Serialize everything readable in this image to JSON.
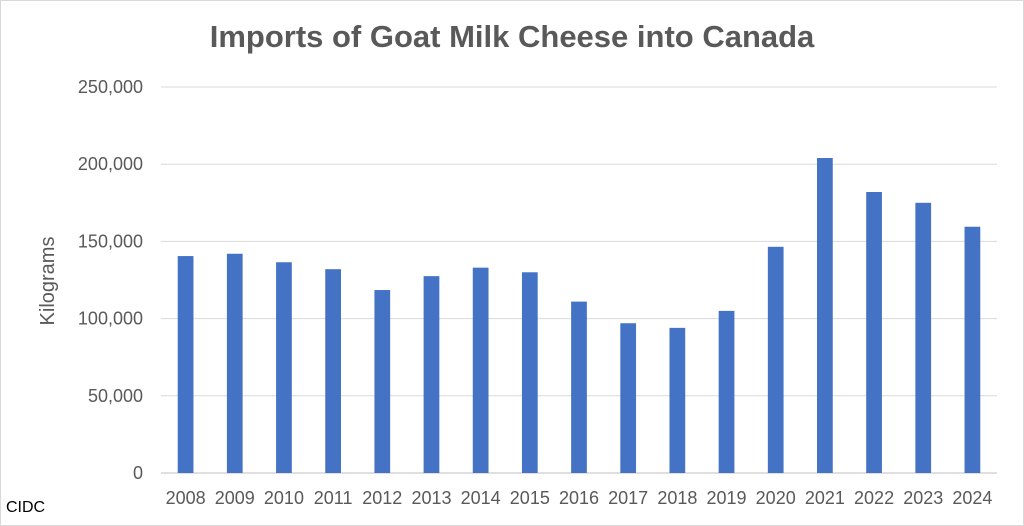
{
  "chart_data": {
    "type": "bar",
    "title": "Imports of Goat Milk Cheese into Canada",
    "ylabel": "Kilograms",
    "xlabel": "",
    "categories": [
      "2008",
      "2009",
      "2010",
      "2011",
      "2012",
      "2013",
      "2014",
      "2015",
      "2016",
      "2017",
      "2018",
      "2019",
      "2020",
      "2021",
      "2022",
      "2023",
      "2024"
    ],
    "values": [
      140500,
      142000,
      136500,
      132000,
      118500,
      127500,
      133000,
      130000,
      111000,
      97000,
      94000,
      105000,
      146500,
      204000,
      182000,
      175000,
      159500
    ],
    "ylim": [
      0,
      250000
    ],
    "yticks": [
      0,
      50000,
      100000,
      150000,
      200000,
      250000
    ],
    "ytick_labels": [
      "0",
      "50,000",
      "100,000",
      "150,000",
      "200,000",
      "250,000"
    ],
    "grid": true,
    "legend": "none",
    "bar_color": "#4472C4",
    "source": "CIDC"
  }
}
